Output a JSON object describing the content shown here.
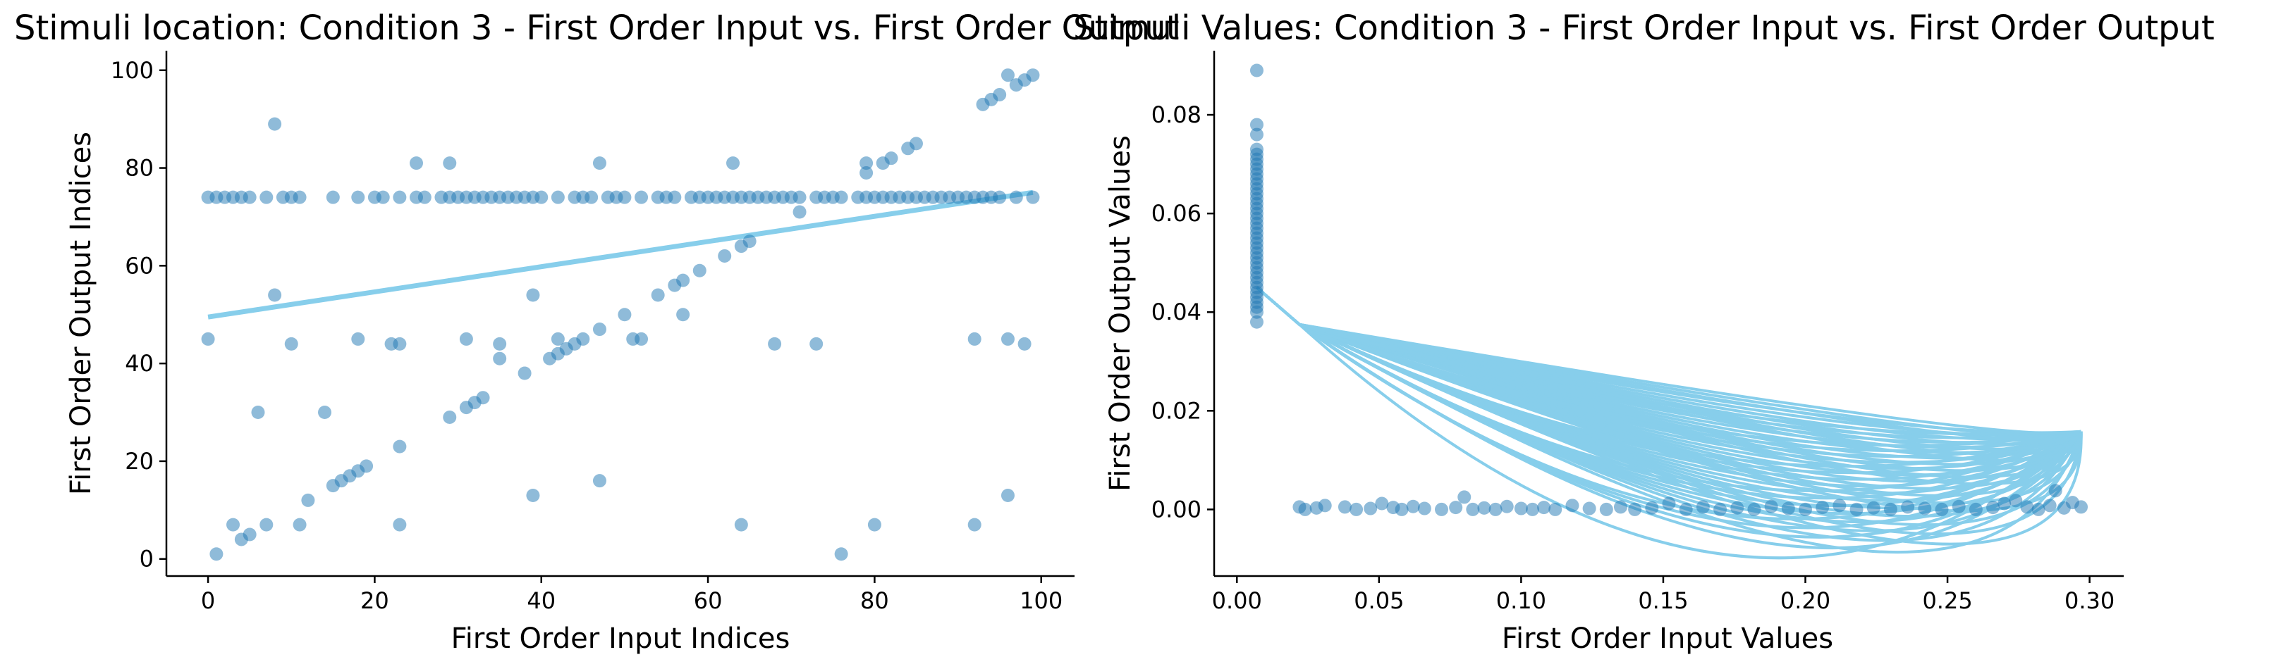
{
  "chart_data": [
    {
      "type": "scatter",
      "title": "Stimuli location: Condition 3 - First Order Input vs. First Order Output",
      "xlabel": "First Order Input Indices",
      "ylabel": "First Order Output Indices",
      "xlim": [
        -5,
        104
      ],
      "ylim": [
        -3.5,
        104
      ],
      "xticks": [
        0,
        20,
        40,
        60,
        80,
        100
      ],
      "yticks": [
        0,
        20,
        40,
        60,
        80,
        100
      ],
      "colors": {
        "points": "#1f77b4",
        "fit": "#87ceeb"
      },
      "fit_line": {
        "x": [
          0,
          99
        ],
        "y": [
          49.5,
          75
        ]
      },
      "points": [
        [
          0,
          45
        ],
        [
          1,
          1
        ],
        [
          3,
          7
        ],
        [
          4,
          4
        ],
        [
          5,
          5
        ],
        [
          6,
          30
        ],
        [
          7,
          7
        ],
        [
          8,
          89
        ],
        [
          8,
          54
        ],
        [
          10,
          44
        ],
        [
          11,
          7
        ],
        [
          12,
          12
        ],
        [
          14,
          30
        ],
        [
          15,
          15
        ],
        [
          16,
          16
        ],
        [
          17,
          17
        ],
        [
          18,
          18
        ],
        [
          18,
          45
        ],
        [
          19,
          19
        ],
        [
          22,
          44
        ],
        [
          23,
          44
        ],
        [
          23,
          23
        ],
        [
          23,
          7
        ],
        [
          25,
          81
        ],
        [
          29,
          81
        ],
        [
          29,
          29
        ],
        [
          31,
          31
        ],
        [
          31,
          45
        ],
        [
          32,
          32
        ],
        [
          33,
          33
        ],
        [
          35,
          41
        ],
        [
          35,
          44
        ],
        [
          38,
          38
        ],
        [
          39,
          54
        ],
        [
          39,
          13
        ],
        [
          41,
          41
        ],
        [
          42,
          42
        ],
        [
          42,
          45
        ],
        [
          43,
          43
        ],
        [
          44,
          44
        ],
        [
          45,
          45
        ],
        [
          47,
          47
        ],
        [
          47,
          81
        ],
        [
          47,
          16
        ],
        [
          50,
          50
        ],
        [
          51,
          45
        ],
        [
          52,
          45
        ],
        [
          54,
          54
        ],
        [
          56,
          56
        ],
        [
          57,
          57
        ],
        [
          57,
          50
        ],
        [
          59,
          59
        ],
        [
          62,
          62
        ],
        [
          63,
          81
        ],
        [
          64,
          64
        ],
        [
          64,
          7
        ],
        [
          65,
          65
        ],
        [
          68,
          44
        ],
        [
          71,
          71
        ],
        [
          73,
          44
        ],
        [
          76,
          1
        ],
        [
          79,
          81
        ],
        [
          79,
          79
        ],
        [
          80,
          7
        ],
        [
          81,
          81
        ],
        [
          82,
          82
        ],
        [
          84,
          84
        ],
        [
          85,
          85
        ],
        [
          92,
          7
        ],
        [
          92,
          45
        ],
        [
          93,
          93
        ],
        [
          94,
          94
        ],
        [
          95,
          95
        ],
        [
          96,
          99
        ],
        [
          96,
          45
        ],
        [
          96,
          13
        ],
        [
          97,
          97
        ],
        [
          98,
          98
        ],
        [
          98,
          44
        ],
        [
          99,
          99
        ],
        [
          0,
          74
        ],
        [
          1,
          74
        ],
        [
          2,
          74
        ],
        [
          3,
          74
        ],
        [
          4,
          74
        ],
        [
          5,
          74
        ],
        [
          7,
          74
        ],
        [
          9,
          74
        ],
        [
          10,
          74
        ],
        [
          11,
          74
        ],
        [
          15,
          74
        ],
        [
          18,
          74
        ],
        [
          20,
          74
        ],
        [
          21,
          74
        ],
        [
          23,
          74
        ],
        [
          25,
          74
        ],
        [
          26,
          74
        ],
        [
          28,
          74
        ],
        [
          29,
          74
        ],
        [
          30,
          74
        ],
        [
          31,
          74
        ],
        [
          32,
          74
        ],
        [
          33,
          74
        ],
        [
          34,
          74
        ],
        [
          35,
          74
        ],
        [
          36,
          74
        ],
        [
          37,
          74
        ],
        [
          38,
          74
        ],
        [
          39,
          74
        ],
        [
          40,
          74
        ],
        [
          42,
          74
        ],
        [
          44,
          74
        ],
        [
          45,
          74
        ],
        [
          46,
          74
        ],
        [
          48,
          74
        ],
        [
          49,
          74
        ],
        [
          50,
          74
        ],
        [
          52,
          74
        ],
        [
          54,
          74
        ],
        [
          55,
          74
        ],
        [
          56,
          74
        ],
        [
          58,
          74
        ],
        [
          59,
          74
        ],
        [
          60,
          74
        ],
        [
          61,
          74
        ],
        [
          62,
          74
        ],
        [
          63,
          74
        ],
        [
          64,
          74
        ],
        [
          65,
          74
        ],
        [
          66,
          74
        ],
        [
          67,
          74
        ],
        [
          68,
          74
        ],
        [
          69,
          74
        ],
        [
          70,
          74
        ],
        [
          71,
          74
        ],
        [
          73,
          74
        ],
        [
          74,
          74
        ],
        [
          75,
          74
        ],
        [
          76,
          74
        ],
        [
          78,
          74
        ],
        [
          79,
          74
        ],
        [
          80,
          74
        ],
        [
          81,
          74
        ],
        [
          82,
          74
        ],
        [
          83,
          74
        ],
        [
          84,
          74
        ],
        [
          85,
          74
        ],
        [
          86,
          74
        ],
        [
          87,
          74
        ],
        [
          88,
          74
        ],
        [
          89,
          74
        ],
        [
          90,
          74
        ],
        [
          91,
          74
        ],
        [
          92,
          74
        ],
        [
          93,
          74
        ],
        [
          94,
          74
        ],
        [
          95,
          74
        ],
        [
          97,
          74
        ],
        [
          99,
          74
        ]
      ]
    },
    {
      "type": "scatter",
      "title": "Stimuli Values: Condition 3 - First Order Input vs. First Order Output",
      "xlabel": "First Order Input Values",
      "ylabel": "First Order Output Values",
      "xlim": [
        -0.008,
        0.312
      ],
      "ylim": [
        -0.0135,
        0.093
      ],
      "xticks": [
        0.0,
        0.05,
        0.1,
        0.15,
        0.2,
        0.25,
        0.3
      ],
      "xtick_labels": [
        "0.00",
        "0.05",
        "0.10",
        "0.15",
        "0.20",
        "0.25",
        "0.30"
      ],
      "yticks": [
        0.0,
        0.02,
        0.04,
        0.06,
        0.08
      ],
      "ytick_labels": [
        "0.00",
        "0.02",
        "0.04",
        "0.06",
        "0.08"
      ],
      "colors": {
        "points": "#1f77b4",
        "fit": "#87ceeb"
      },
      "cluster_x": 0.007,
      "cluster_y": [
        0.038,
        0.04,
        0.041,
        0.042,
        0.043,
        0.044,
        0.045,
        0.046,
        0.047,
        0.048,
        0.049,
        0.05,
        0.051,
        0.052,
        0.053,
        0.054,
        0.055,
        0.056,
        0.057,
        0.058,
        0.059,
        0.06,
        0.061,
        0.062,
        0.063,
        0.064,
        0.065,
        0.066,
        0.067,
        0.068,
        0.069,
        0.07,
        0.071,
        0.072,
        0.073,
        0.076,
        0.078,
        0.089
      ],
      "baseline_points": [
        [
          0.022,
          0.0005
        ],
        [
          0.024,
          0.0
        ],
        [
          0.028,
          0.0003
        ],
        [
          0.031,
          0.0008
        ],
        [
          0.038,
          0.0005
        ],
        [
          0.042,
          0.0
        ],
        [
          0.047,
          0.0002
        ],
        [
          0.051,
          0.0012
        ],
        [
          0.055,
          0.0004
        ],
        [
          0.058,
          0.0
        ],
        [
          0.062,
          0.0006
        ],
        [
          0.066,
          0.0002
        ],
        [
          0.072,
          0.0
        ],
        [
          0.077,
          0.0004
        ],
        [
          0.08,
          0.0025
        ],
        [
          0.083,
          0.0
        ],
        [
          0.087,
          0.0003
        ],
        [
          0.091,
          0.0
        ],
        [
          0.095,
          0.0006
        ],
        [
          0.1,
          0.0002
        ],
        [
          0.104,
          0.0
        ],
        [
          0.108,
          0.0004
        ],
        [
          0.112,
          0.0
        ],
        [
          0.118,
          0.0008
        ],
        [
          0.124,
          0.0002
        ],
        [
          0.13,
          0.0
        ],
        [
          0.135,
          0.0005
        ],
        [
          0.14,
          0.0
        ],
        [
          0.146,
          0.0003
        ],
        [
          0.152,
          0.0012
        ],
        [
          0.158,
          0.0
        ],
        [
          0.164,
          0.0005
        ],
        [
          0.17,
          0.0
        ],
        [
          0.176,
          0.0003
        ],
        [
          0.182,
          0.0
        ],
        [
          0.188,
          0.0006
        ],
        [
          0.194,
          0.0002
        ],
        [
          0.2,
          0.0
        ],
        [
          0.206,
          0.0004
        ],
        [
          0.212,
          0.0008
        ],
        [
          0.218,
          0.0
        ],
        [
          0.224,
          0.0003
        ],
        [
          0.23,
          0.0
        ],
        [
          0.236,
          0.0005
        ],
        [
          0.242,
          0.0002
        ],
        [
          0.248,
          0.0
        ],
        [
          0.254,
          0.0006
        ],
        [
          0.26,
          0.0
        ],
        [
          0.266,
          0.0004
        ],
        [
          0.27,
          0.0012
        ],
        [
          0.274,
          0.0018
        ],
        [
          0.278,
          0.0005
        ],
        [
          0.282,
          0.0
        ],
        [
          0.286,
          0.0008
        ],
        [
          0.288,
          0.0038
        ],
        [
          0.291,
          0.0003
        ],
        [
          0.294,
          0.0014
        ],
        [
          0.297,
          0.0005
        ]
      ],
      "fit_curves": {
        "x_start": 0.007,
        "y_start": 0.045,
        "x_first": 0.022,
        "y_first": 0.0375,
        "x_end": 0.297,
        "y_end": 0.0158,
        "dip_min": [
          -0.009,
          0.02
        ],
        "count": 55
      }
    }
  ]
}
